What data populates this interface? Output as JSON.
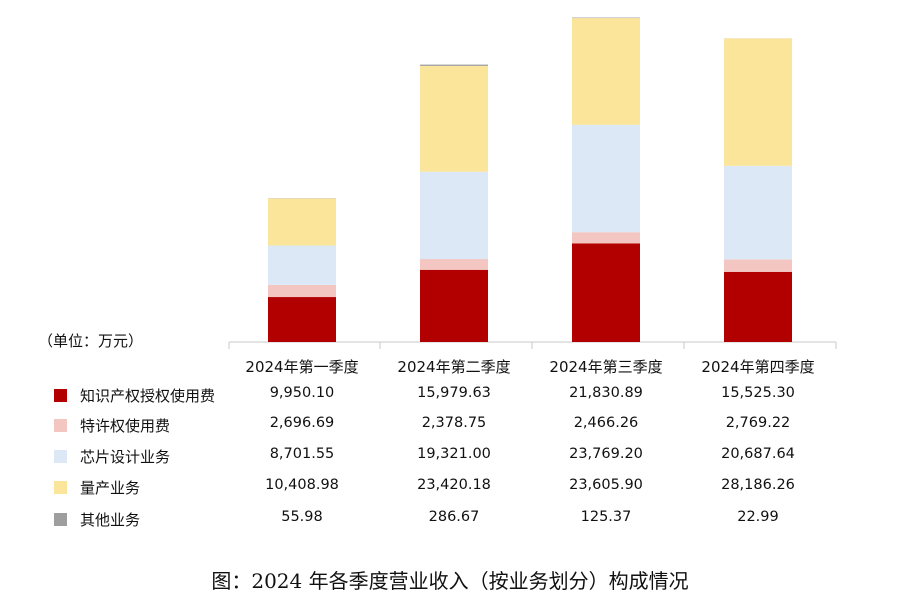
{
  "unit_label": "（单位：万元）",
  "caption": "图：2024 年各季度营业收入（按业务划分）构成情况",
  "colors": {
    "知识产权授权使用费": "#b20000",
    "特许权使用费": "#f4c6c2",
    "芯片设计业务": "#dce8f5",
    "量产业务": "#fbe59b",
    "其他业务": "#9e9e9e"
  },
  "chart_data": {
    "type": "bar",
    "stacked": true,
    "categories": [
      "2024年第一季度",
      "2024年第二季度",
      "2024年第三季度",
      "2024年第四季度"
    ],
    "series": [
      {
        "name": "知识产权授权使用费",
        "values": [
          9950.1,
          15979.63,
          21830.89,
          15525.3
        ],
        "labels": [
          "9,950.10",
          "15,979.63",
          "21,830.89",
          "15,525.30"
        ]
      },
      {
        "name": "特许权使用费",
        "values": [
          2696.69,
          2378.75,
          2466.26,
          2769.22
        ],
        "labels": [
          "2,696.69",
          "2,378.75",
          "2,466.26",
          "2,769.22"
        ]
      },
      {
        "name": "芯片设计业务",
        "values": [
          8701.55,
          19321.0,
          23769.2,
          20687.64
        ],
        "labels": [
          "8,701.55",
          "19,321.00",
          "23,769.20",
          "20,687.64"
        ]
      },
      {
        "name": "量产业务",
        "values": [
          10408.98,
          23420.18,
          23605.9,
          28186.26
        ],
        "labels": [
          "10,408.98",
          "23,420.18",
          "23,605.90",
          "28,186.26"
        ]
      },
      {
        "name": "其他业务",
        "values": [
          55.98,
          286.67,
          125.37,
          22.99
        ],
        "labels": [
          "55.98",
          "286.67",
          "125.37",
          "22.99"
        ]
      }
    ],
    "ylim": [
      0,
      72000
    ],
    "legend": "table-below"
  }
}
